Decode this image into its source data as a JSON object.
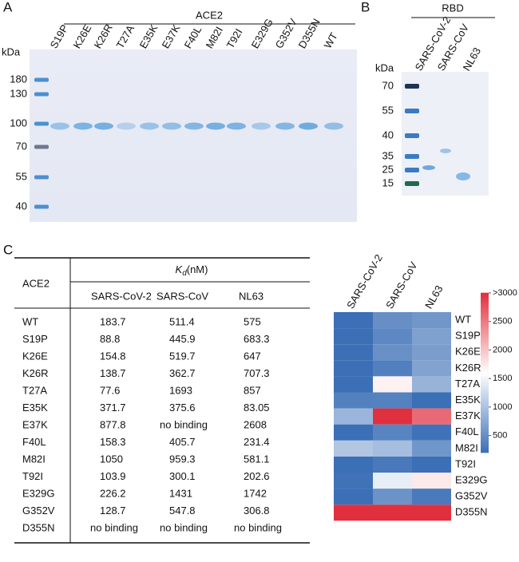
{
  "panel_a": {
    "letter": "A",
    "group_label": "ACE2",
    "lanes": [
      "S19P",
      "K26E",
      "K26R",
      "T27A",
      "E35K",
      "E37K",
      "F40L",
      "M82I",
      "T92I",
      "E329G",
      "G352V",
      "D355N",
      "WT"
    ],
    "unit": "kDa",
    "markers": [
      "180",
      "130",
      "100",
      "70",
      "55",
      "40"
    ]
  },
  "panel_b": {
    "letter": "B",
    "group_label": "RBD",
    "lanes": [
      "SARS-CoV-2",
      "SARS-CoV",
      "NL63"
    ],
    "unit": "kDa",
    "markers": [
      "70",
      "55",
      "40",
      "35",
      "25",
      "15"
    ]
  },
  "panel_c": {
    "letter": "C",
    "table": {
      "row_header": "ACE2",
      "kd_symbol": "K",
      "kd_subscript": "d",
      "kd_unit": "(nM)",
      "columns": [
        "SARS-CoV-2",
        "SARS-CoV",
        "NL63"
      ],
      "rows": [
        [
          "WT",
          "183.7",
          "511.4",
          "575"
        ],
        [
          "S19P",
          "88.8",
          "445.9",
          "683.3"
        ],
        [
          "K26E",
          "154.8",
          "519.7",
          "647"
        ],
        [
          "K26R",
          "138.7",
          "362.7",
          "707.3"
        ],
        [
          "T27A",
          "77.6",
          "1693",
          "857"
        ],
        [
          "E35K",
          "371.7",
          "375.6",
          "83.05"
        ],
        [
          "E37K",
          "877.8",
          "no binding",
          "2608"
        ],
        [
          "F40L",
          "158.3",
          "405.7",
          "231.4"
        ],
        [
          "M82I",
          "1050",
          "959.3",
          "581.1"
        ],
        [
          "T92I",
          "103.9",
          "300.1",
          "202.6"
        ],
        [
          "E329G",
          "226.2",
          "1431",
          "1742"
        ],
        [
          "G352V",
          "128.7",
          "547.8",
          "306.8"
        ],
        [
          "D355N",
          "no binding",
          "no binding",
          "no binding"
        ]
      ]
    },
    "heatmap": {
      "clim": [
        200,
        3000
      ],
      "colors": [
        "#3b6fb6",
        "#ffffff",
        "#e0303e"
      ],
      "ticks": [
        {
          "value": 3000,
          "label": ">3000"
        },
        2500,
        2000,
        1500,
        1000,
        500
      ]
    }
  }
}
